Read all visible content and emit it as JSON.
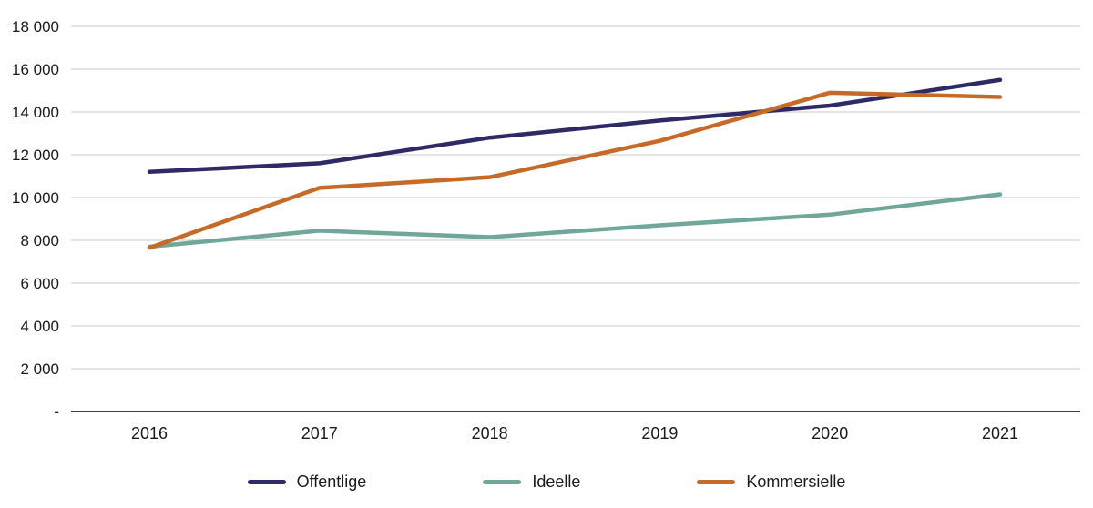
{
  "chart_data": {
    "type": "line",
    "x": [
      2016,
      2017,
      2018,
      2019,
      2020,
      2021
    ],
    "xtick_labels": [
      "2016",
      "2017",
      "2018",
      "2019",
      "2020",
      "2021"
    ],
    "series": [
      {
        "name": "Offentlige",
        "color": "#2e2a66",
        "values": [
          11200,
          11600,
          12800,
          13600,
          14300,
          15500
        ]
      },
      {
        "name": "Ideelle",
        "color": "#71a79a",
        "values": [
          7700,
          8450,
          8150,
          8700,
          9200,
          10150
        ]
      },
      {
        "name": "Kommersielle",
        "color": "#c56a28",
        "values": [
          7650,
          10450,
          10950,
          12650,
          14900,
          14700
        ]
      }
    ],
    "ylim": [
      0,
      18000
    ],
    "ytick_step": 2000,
    "ytick_labels_bottom_up": [
      "-",
      "2 000",
      "4 000",
      "6 000",
      "8 000",
      "10 000",
      "12 000",
      "14 000",
      "16 000",
      "18 000"
    ],
    "grid": true,
    "legend_position": "bottom",
    "colors": {
      "grid": "#c9c9c9",
      "axis": "#000000",
      "text": "#1a1a1a",
      "background": "#ffffff"
    },
    "title": "",
    "xlabel": "",
    "ylabel": ""
  }
}
